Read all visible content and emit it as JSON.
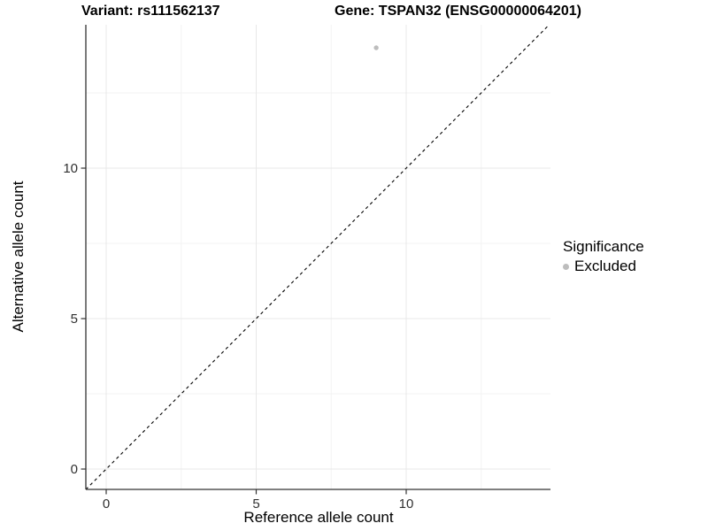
{
  "titles": {
    "variant": "Variant: rs111562137",
    "gene": "Gene: TSPAN32 (ENSG00000064201)"
  },
  "chart_data": {
    "type": "scatter",
    "title_left": "Variant: rs111562137",
    "title_right": "Gene: TSPAN32 (ENSG00000064201)",
    "xlabel": "Reference allele count",
    "ylabel": "Alternative allele count",
    "xlim": [
      -0.68,
      14.77
    ],
    "ylim": [
      -0.68,
      14.77
    ],
    "xticks": [
      0,
      5,
      10
    ],
    "yticks": [
      0,
      5,
      10
    ],
    "x_minor_ticks": [
      2.5,
      7.5,
      12.5
    ],
    "y_minor_ticks": [
      2.5,
      7.5,
      12.5
    ],
    "grid": "major and minor, very light",
    "points": [
      {
        "x": 9,
        "y": 14,
        "series": "Excluded"
      }
    ],
    "reference_line": {
      "equation": "y = x",
      "style": "dashed",
      "color": "#000000"
    },
    "legend": {
      "title": "Significance",
      "position": "right",
      "entries": [
        {
          "label": "Excluded",
          "color": "#bdbdbd"
        }
      ]
    }
  },
  "colors": {
    "background": "#ffffff",
    "axis_line": "#333333",
    "tick_label": "#303030",
    "grid_major": "#e8e8e8",
    "grid_minor": "#f3f3f3",
    "point_fill": "#bdbdbd",
    "identity_line": "#000000"
  }
}
